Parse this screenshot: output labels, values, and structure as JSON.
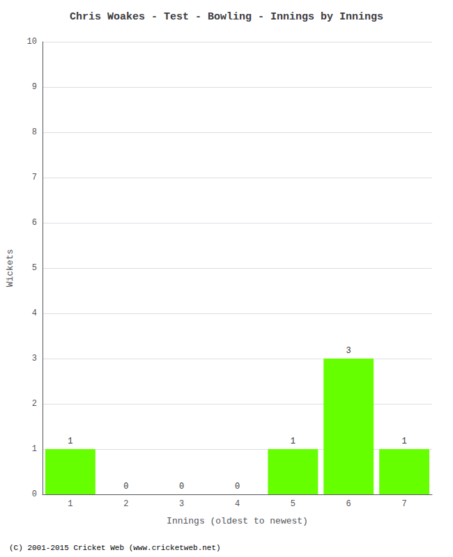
{
  "chart_data": {
    "type": "bar",
    "title": "Chris Woakes - Test - Bowling - Innings by Innings",
    "xlabel": "Innings (oldest to newest)",
    "ylabel": "Wickets",
    "categories": [
      "1",
      "2",
      "3",
      "4",
      "5",
      "6",
      "7"
    ],
    "values": [
      1,
      0,
      0,
      0,
      1,
      3,
      1
    ],
    "color": "#66ff00",
    "ylim": [
      0,
      10
    ],
    "yticks": [
      0,
      1,
      2,
      3,
      4,
      5,
      6,
      7,
      8,
      9,
      10
    ],
    "grid": true,
    "data_labels": true,
    "annotations": [
      "(C) 2001-2015 Cricket Web (www.cricketweb.net)"
    ]
  }
}
